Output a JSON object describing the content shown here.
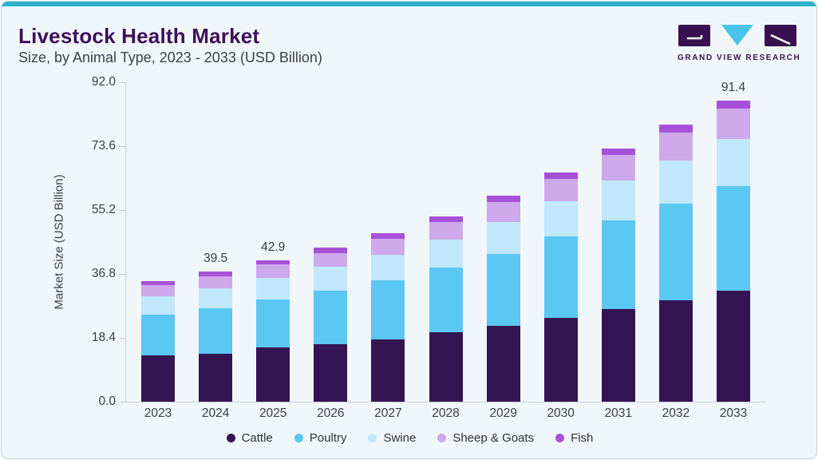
{
  "card": {
    "title": "Livestock Health Market",
    "subtitle": "Size, by Animal Type, 2023 - 2033 (USD Billion)",
    "accent_color": "#2db1ca"
  },
  "logo": {
    "text": "GRAND VIEW RESEARCH",
    "mark_dark_color": "#3a1150",
    "mark_cyan_color": "#49c3e9"
  },
  "chart_data": {
    "type": "bar",
    "stacked": true,
    "title": "Livestock Health Market Size, by Animal Type, 2023 - 2033 (USD Billion)",
    "xlabel": "",
    "ylabel": "Market Size (USD Billion)",
    "ylim": [
      0,
      92
    ],
    "yticks": [
      0.0,
      18.4,
      36.8,
      55.2,
      73.6,
      92.0
    ],
    "ytick_labels": [
      "0.0",
      "18.4",
      "36.8",
      "55.2",
      "73.6",
      "92.0"
    ],
    "grid": false,
    "legend_position": "bottom",
    "categories": [
      "2023",
      "2024",
      "2025",
      "2026",
      "2027",
      "2028",
      "2029",
      "2030",
      "2031",
      "2032",
      "2033"
    ],
    "series": [
      {
        "name": "Cattle",
        "color": "#341452",
        "values": [
          14.1,
          14.6,
          16.4,
          17.4,
          19.0,
          21.1,
          23.1,
          25.5,
          28.2,
          30.9,
          33.8
        ]
      },
      {
        "name": "Poultry",
        "color": "#5bc7f3",
        "values": [
          12.4,
          13.9,
          14.6,
          16.4,
          17.8,
          19.7,
          21.9,
          24.8,
          27.0,
          29.2,
          31.8
        ]
      },
      {
        "name": "Swine",
        "color": "#c0e7fa",
        "values": [
          5.6,
          5.9,
          6.7,
          7.1,
          7.8,
          8.4,
          9.7,
          10.5,
          12.0,
          13.3,
          14.3
        ]
      },
      {
        "name": "Sheep & Goats",
        "color": "#cda8ea",
        "values": [
          3.4,
          3.8,
          4.0,
          4.2,
          4.9,
          5.4,
          5.9,
          6.9,
          7.7,
          8.5,
          9.1
        ]
      },
      {
        "name": "Fish",
        "color": "#a751d8",
        "values": [
          1.2,
          1.3,
          1.2,
          1.7,
          1.6,
          1.6,
          2.0,
          1.9,
          2.0,
          2.3,
          2.4
        ]
      }
    ],
    "totals": [
      36.7,
      39.5,
      42.9,
      46.8,
      51.1,
      56.2,
      62.6,
      69.6,
      76.9,
      84.2,
      91.4
    ],
    "bar_labels": {
      "2024": "39.5",
      "2025": "42.9",
      "2033": "91.4"
    }
  }
}
